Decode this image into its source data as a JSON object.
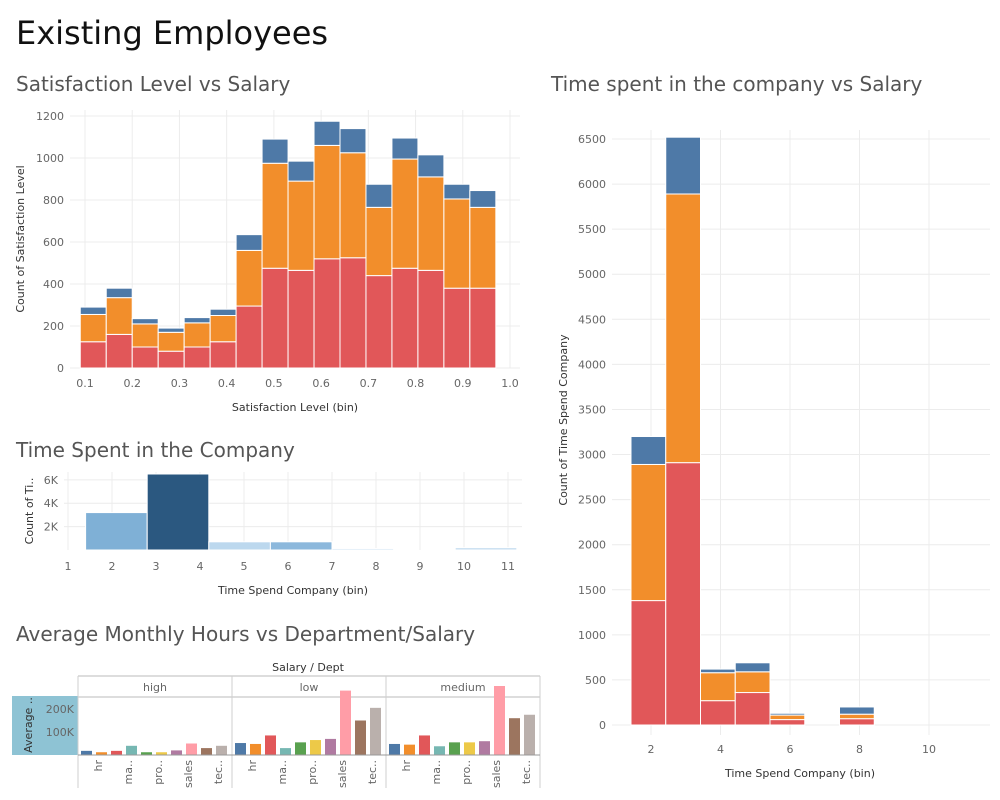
{
  "page": {
    "title": "Existing Employees"
  },
  "colors": {
    "high": "#4e79a7",
    "medium": "#f28e2b",
    "low": "#e15759"
  },
  "chart_data": [
    {
      "id": "sat",
      "type": "bar",
      "stacked": true,
      "title": "Satisfaction Level vs Salary",
      "xlabel": "Satisfaction Level (bin)",
      "ylabel": "Count of Satisfaction Level",
      "xticks": [
        "0.1",
        "0.2",
        "0.3",
        "0.4",
        "0.5",
        "0.6",
        "0.7",
        "0.8",
        "0.9",
        "1.0"
      ],
      "yticks": [
        "0",
        "200",
        "400",
        "600",
        "800",
        "1000",
        "1200"
      ],
      "ylim": [
        0,
        1200
      ],
      "series_colors": [
        "low",
        "medium",
        "high"
      ],
      "series": [
        {
          "values": [
            125,
            160,
            100,
            80,
            100,
            125,
            295,
            475,
            465,
            520,
            525,
            440,
            475,
            465,
            380,
            380
          ]
        },
        {
          "values": [
            130,
            175,
            110,
            90,
            115,
            125,
            265,
            500,
            425,
            540,
            500,
            325,
            520,
            445,
            425,
            385
          ]
        },
        {
          "values": [
            35,
            45,
            25,
            20,
            25,
            30,
            75,
            115,
            95,
            115,
            115,
            110,
            100,
            105,
            70,
            80
          ]
        }
      ],
      "bins": [
        [
          0.09,
          0.145
        ],
        [
          0.145,
          0.2
        ],
        [
          0.2,
          0.255
        ],
        [
          0.255,
          0.31
        ],
        [
          0.31,
          0.365
        ],
        [
          0.365,
          0.42
        ],
        [
          0.42,
          0.475
        ],
        [
          0.475,
          0.53
        ],
        [
          0.53,
          0.585
        ],
        [
          0.585,
          0.64
        ],
        [
          0.64,
          0.695
        ],
        [
          0.695,
          0.75
        ],
        [
          0.75,
          0.805
        ],
        [
          0.805,
          0.86
        ],
        [
          0.86,
          0.915
        ],
        [
          0.915,
          0.97
        ]
      ],
      "xlim": [
        0.1,
        1.0
      ],
      "grid": true
    },
    {
      "id": "tsc",
      "type": "bar",
      "title": "Time Spent in the Company",
      "xlabel": "Time Spend Company (bin)",
      "ylabel": "Count of Ti..",
      "xticks": [
        "1",
        "2",
        "3",
        "4",
        "5",
        "6",
        "7",
        "8",
        "9",
        "10",
        "11"
      ],
      "yticks": [
        "2K",
        "4K",
        "6K"
      ],
      "ytick_values": [
        2000,
        4000,
        6000
      ],
      "ylim": [
        0,
        6500
      ],
      "xlim": [
        1,
        11
      ],
      "bins": [
        [
          1.4,
          2.8
        ],
        [
          2.8,
          4.2
        ],
        [
          4.2,
          5.6
        ],
        [
          5.6,
          7.0
        ],
        [
          7.0,
          8.4
        ],
        [
          8.4,
          9.8
        ],
        [
          9.8,
          11.2
        ]
      ],
      "values": [
        3200,
        6500,
        700,
        700,
        130,
        0,
        200
      ],
      "bar_colors": [
        "#7fb0d6",
        "#2b5880",
        "#bcd8ee",
        "#8cb8dc",
        "#cfe3f3",
        "#cfe3f3",
        "#c4dcf0"
      ],
      "grid": true
    },
    {
      "id": "hours",
      "type": "bar",
      "title": "Average Monthly Hours vs Department/Salary",
      "header": "Salary  /  Dept",
      "ylabel": "Average ..",
      "yticks": [
        "100K",
        "200K"
      ],
      "ytick_values": [
        100000,
        200000
      ],
      "ylim": [
        0,
        300000
      ],
      "categories": [
        "hr",
        "ma..",
        "pro..",
        "sales",
        "tec.."
      ],
      "bar_colors": [
        "#4e79a7",
        "#f28e2b",
        "#e15759",
        "#76b7b2",
        "#59a14f",
        "#edc948",
        "#b07aa1",
        "#ff9da7",
        "#9c755f",
        "#bab0ac"
      ],
      "panels": [
        {
          "name": "high",
          "values": [
            18000,
            12000,
            18000,
            40000,
            12000,
            12000,
            20000,
            50000,
            30000,
            40000
          ]
        },
        {
          "name": "low",
          "values": [
            52000,
            48000,
            85000,
            30000,
            55000,
            65000,
            70000,
            280000,
            150000,
            205000
          ]
        },
        {
          "name": "medium",
          "values": [
            48000,
            45000,
            85000,
            38000,
            55000,
            55000,
            60000,
            300000,
            160000,
            175000
          ]
        }
      ]
    },
    {
      "id": "tsc_sal",
      "type": "bar",
      "stacked": true,
      "title": "Time spent in the company vs Salary",
      "xlabel": "Time Spend Company (bin)",
      "ylabel": "Count of Time Spend Company",
      "xticks": [
        "2",
        "4",
        "6",
        "8",
        "10"
      ],
      "yticks": [
        "0",
        "500",
        "1000",
        "1500",
        "2000",
        "2500",
        "3000",
        "3500",
        "4000",
        "4500",
        "5000",
        "5500",
        "6000",
        "6500"
      ],
      "ylim": [
        0,
        6500
      ],
      "xlim": [
        1.2,
        10.8
      ],
      "series_colors": [
        "low",
        "medium",
        "high"
      ],
      "bins": [
        [
          2,
          3
        ],
        [
          3,
          4
        ],
        [
          4,
          5
        ],
        [
          5,
          6
        ],
        [
          6,
          7
        ],
        [
          7,
          8
        ],
        [
          8,
          9
        ],
        [
          9,
          10
        ]
      ],
      "series": [
        {
          "values": [
            1380,
            2910,
            270,
            360,
            60,
            0,
            70,
            0
          ]
        },
        {
          "values": [
            1510,
            2980,
            310,
            230,
            50,
            0,
            50,
            0
          ]
        },
        {
          "values": [
            310,
            630,
            40,
            100,
            20,
            0,
            80,
            0
          ]
        }
      ],
      "grid": true
    }
  ]
}
